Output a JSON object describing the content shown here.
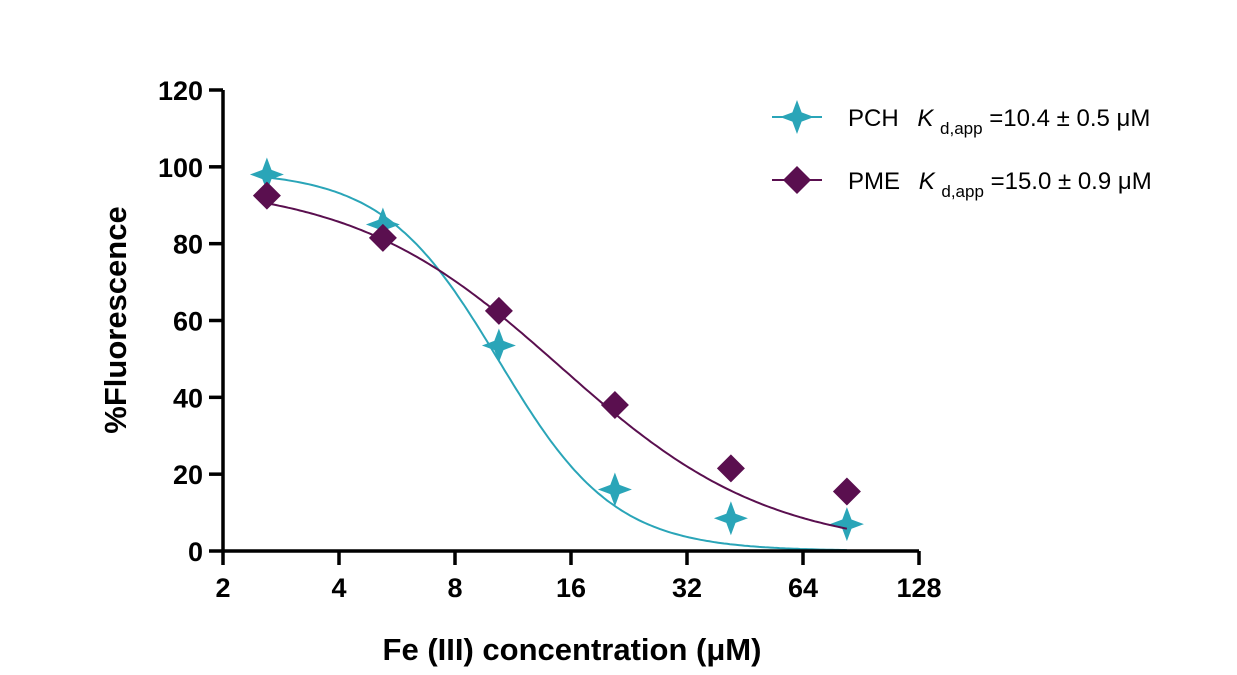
{
  "chart_data": {
    "type": "scatter",
    "xlabel": "Fe (III) concentration (μM)",
    "ylabel": "%Fluorescence",
    "x_scale": "log2",
    "xlim": [
      2,
      128
    ],
    "ylim": [
      0,
      120
    ],
    "x_ticks": [
      2,
      4,
      8,
      16,
      32,
      64,
      128
    ],
    "y_ticks": [
      0,
      20,
      40,
      60,
      80,
      100,
      120
    ],
    "legend_position": "top-right",
    "series": [
      {
        "name": "PCH",
        "legend_label": "Kd,app=10.4 ± 0.5 μM",
        "kd_symbol": "K",
        "kd_subscript": "d,app",
        "kd_value": "=10.4 ± 0.5 μM",
        "color": "#2aa5b8",
        "marker": "star",
        "x": [
          2.6,
          5.2,
          10.4,
          20.8,
          41.6,
          83.2
        ],
        "y": [
          98,
          85,
          53.5,
          16,
          8.5,
          7
        ],
        "fit": {
          "type": "hill",
          "top": 99,
          "kd": 10.4,
          "hill": 2.9
        }
      },
      {
        "name": "PME",
        "legend_label": "Kd,app=15.0 ± 0.9 μM",
        "kd_symbol": "K",
        "kd_subscript": "d,app",
        "kd_value": "=15.0 ± 0.9 μM",
        "color": "#5a0f4f",
        "marker": "diamond",
        "x": [
          2.6,
          5.2,
          10.4,
          20.8,
          41.6,
          83.2
        ],
        "y": [
          92.5,
          81.5,
          62.5,
          38,
          21.5,
          15.5
        ],
        "fit": {
          "type": "hill",
          "top": 96,
          "kd": 15.0,
          "hill": 1.6
        }
      }
    ]
  }
}
